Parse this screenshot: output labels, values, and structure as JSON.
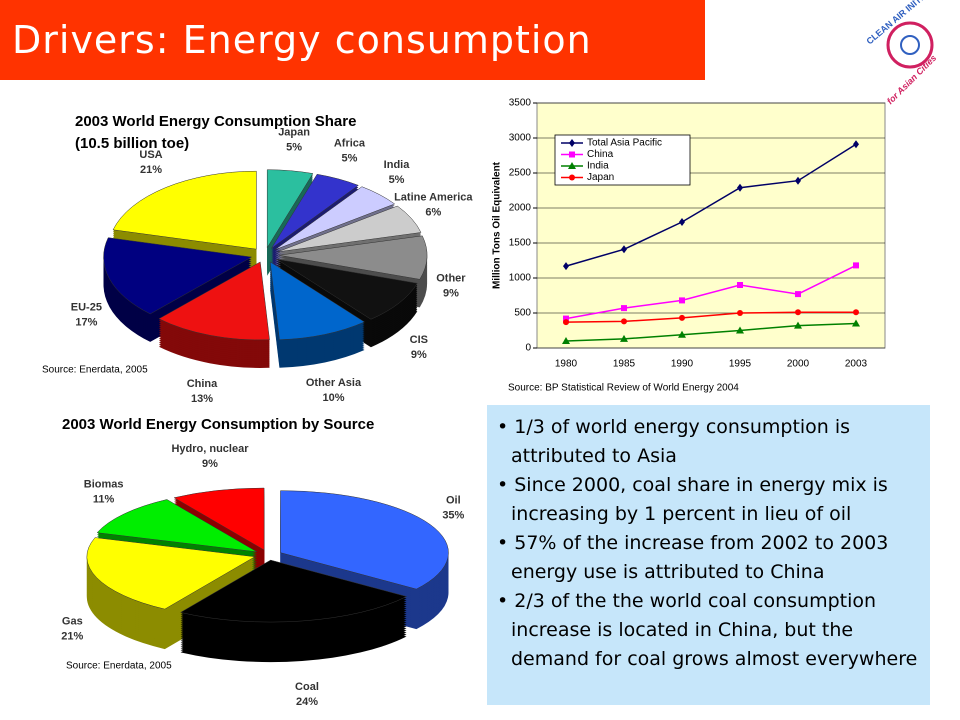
{
  "title": "Drivers: Energy consumption",
  "logo": {
    "line1": "CLEAN AIR INITIATIVE",
    "line2": "for Asian Cities"
  },
  "chart_data": [
    {
      "type": "pie",
      "title": "2003 World Energy Consumption Share",
      "subtitle": "(10.5 billion toe)",
      "categories": [
        "Japan",
        "Africa",
        "India",
        "Latine America",
        "Other",
        "CIS",
        "Other Asia",
        "China",
        "EU-25",
        "USA"
      ],
      "values": [
        5,
        5,
        5,
        6,
        9,
        9,
        10,
        13,
        17,
        21
      ],
      "value_labels": [
        "5%",
        "5%",
        "5%",
        "6%",
        "9%",
        "9%",
        "10%",
        "13%",
        "17%",
        "21%"
      ],
      "colors": [
        "#2bbf9f",
        "#3333cc",
        "#ccccff",
        "#cccccc",
        "#8c8c8c",
        "#111111",
        "#0066cc",
        "#ee1111",
        "#000080",
        "#ffff00"
      ],
      "source": "Source: Enerdata, 2005"
    },
    {
      "type": "line",
      "ylabel": "Million Tons Oil Equivalent",
      "categories": [
        "1980",
        "1985",
        "1990",
        "1995",
        "2000",
        "2003"
      ],
      "series": [
        {
          "name": "Total Asia Pacific",
          "color": "#000066",
          "marker": "diamond",
          "values": [
            1170,
            1410,
            1800,
            2290,
            2390,
            2910
          ]
        },
        {
          "name": "China",
          "color": "#ff00ff",
          "marker": "square",
          "values": [
            420,
            570,
            680,
            900,
            770,
            1180
          ]
        },
        {
          "name": "India",
          "color": "#008000",
          "marker": "triangle",
          "values": [
            100,
            130,
            190,
            250,
            320,
            350
          ]
        },
        {
          "name": "Japan",
          "color": "#ff0000",
          "marker": "circle",
          "values": [
            370,
            380,
            430,
            500,
            510,
            510
          ]
        }
      ],
      "ylim": [
        0,
        3500
      ],
      "yticks": [
        0,
        500,
        1000,
        1500,
        2000,
        2500,
        3000,
        3500
      ],
      "grid": true,
      "legend": "top-left",
      "background": "#ffffcc",
      "source": "Source: BP Statistical Review of World Energy 2004"
    },
    {
      "type": "pie",
      "title": "2003 World Energy Consumption by Source",
      "categories": [
        "Oil",
        "Coal",
        "Gas",
        "Biomas",
        "Hydro, nuclear"
      ],
      "values": [
        35,
        24,
        21,
        11,
        9
      ],
      "value_labels": [
        "35%",
        "24%",
        "21%",
        "11%",
        "9%"
      ],
      "colors": [
        "#3366ff",
        "#000000",
        "#ffff00",
        "#00ee00",
        "#ff0000"
      ],
      "source": "Source: Enerdata, 2005"
    }
  ],
  "bullets": [
    "1/3 of world energy consumption is attributed to Asia",
    "Since 2000, coal share in energy mix is increasing by 1 percent in lieu of oil",
    "57% of the increase from 2002 to 2003 energy use is attributed to China",
    "2/3 of the the world coal consumption increase is located in China, but the demand for coal grows almost everywhere"
  ]
}
